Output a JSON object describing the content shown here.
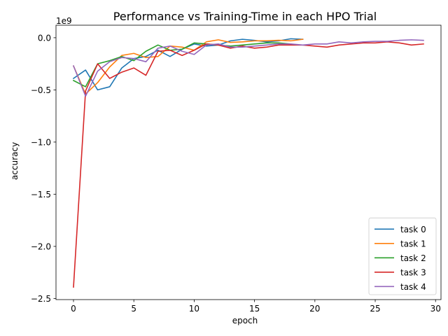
{
  "chart_data": {
    "type": "line",
    "title": "Performance vs Training-Time in each HPO Trial",
    "xlabel": "epoch",
    "ylabel": "accuracy",
    "y_offset_label": "1e9",
    "xlim": [
      -1.45,
      30.45
    ],
    "ylim": [
      -2.51,
      0.12
    ],
    "x_ticks": [
      0,
      5,
      10,
      15,
      20,
      25,
      30
    ],
    "x_tick_labels": [
      "0",
      "5",
      "10",
      "15",
      "20",
      "25",
      "30"
    ],
    "y_ticks": [
      0.0,
      -0.5,
      -1.0,
      -1.5,
      -2.0,
      -2.5
    ],
    "y_tick_labels": [
      "0.0",
      "−0.5",
      "−1.0",
      "−1.5",
      "−2.0",
      "−2.5"
    ],
    "grid": false,
    "legend_position": "lower-right",
    "series": [
      {
        "name": "task 0",
        "color": "#1f77b4",
        "x": [
          0,
          1,
          2,
          3,
          4,
          5,
          6,
          7,
          8,
          9,
          10,
          11,
          12,
          13,
          14,
          15,
          16,
          17,
          18,
          19
        ],
        "y": [
          -0.39,
          -0.31,
          -0.5,
          -0.47,
          -0.29,
          -0.2,
          -0.18,
          -0.12,
          -0.18,
          -0.11,
          -0.06,
          -0.08,
          -0.07,
          -0.03,
          -0.015,
          -0.025,
          -0.04,
          -0.03,
          -0.01,
          -0.015
        ]
      },
      {
        "name": "task 1",
        "color": "#ff7f0e",
        "x": [
          0,
          1,
          2,
          3,
          4,
          5,
          6,
          7,
          8,
          9,
          10,
          11,
          12,
          13,
          14,
          15,
          16,
          17,
          18,
          19
        ],
        "y": [
          -0.27,
          -0.54,
          -0.43,
          -0.28,
          -0.17,
          -0.15,
          -0.19,
          -0.18,
          -0.08,
          -0.09,
          -0.12,
          -0.04,
          -0.02,
          -0.045,
          -0.04,
          -0.03,
          -0.03,
          -0.025,
          -0.03,
          -0.015
        ]
      },
      {
        "name": "task 2",
        "color": "#2ca02c",
        "x": [
          0,
          1,
          2,
          3,
          4,
          5,
          6,
          7,
          8,
          9,
          10,
          11,
          12,
          13,
          14,
          15,
          16,
          17,
          18
        ],
        "y": [
          -0.41,
          -0.47,
          -0.25,
          -0.22,
          -0.18,
          -0.22,
          -0.13,
          -0.07,
          -0.12,
          -0.11,
          -0.05,
          -0.06,
          -0.07,
          -0.08,
          -0.07,
          -0.06,
          -0.05,
          -0.05,
          -0.06
        ]
      },
      {
        "name": "task 3",
        "color": "#d62728",
        "x": [
          0,
          1,
          2,
          3,
          4,
          5,
          6,
          7,
          8,
          9,
          10,
          11,
          12,
          13,
          14,
          15,
          16,
          17,
          18,
          19,
          20,
          21,
          22,
          23,
          24,
          25,
          26,
          27,
          28,
          29
        ],
        "y": [
          -2.39,
          -0.51,
          -0.25,
          -0.39,
          -0.33,
          -0.29,
          -0.36,
          -0.13,
          -0.12,
          -0.17,
          -0.12,
          -0.06,
          -0.07,
          -0.1,
          -0.08,
          -0.1,
          -0.09,
          -0.07,
          -0.07,
          -0.07,
          -0.08,
          -0.09,
          -0.07,
          -0.06,
          -0.05,
          -0.05,
          -0.04,
          -0.05,
          -0.07,
          -0.06
        ]
      },
      {
        "name": "task 4",
        "color": "#9467bd",
        "x": [
          0,
          1,
          2,
          3,
          4,
          5,
          6,
          7,
          8,
          9,
          10,
          11,
          12,
          13,
          14,
          15,
          16,
          17,
          18,
          19,
          20,
          21,
          22,
          23,
          24,
          25,
          26,
          27,
          28,
          29
        ],
        "y": [
          -0.27,
          -0.56,
          -0.32,
          -0.23,
          -0.19,
          -0.2,
          -0.23,
          -0.1,
          -0.08,
          -0.13,
          -0.16,
          -0.07,
          -0.06,
          -0.09,
          -0.09,
          -0.08,
          -0.07,
          -0.06,
          -0.06,
          -0.07,
          -0.06,
          -0.06,
          -0.04,
          -0.05,
          -0.04,
          -0.035,
          -0.035,
          -0.025,
          -0.02,
          -0.025
        ]
      }
    ]
  }
}
